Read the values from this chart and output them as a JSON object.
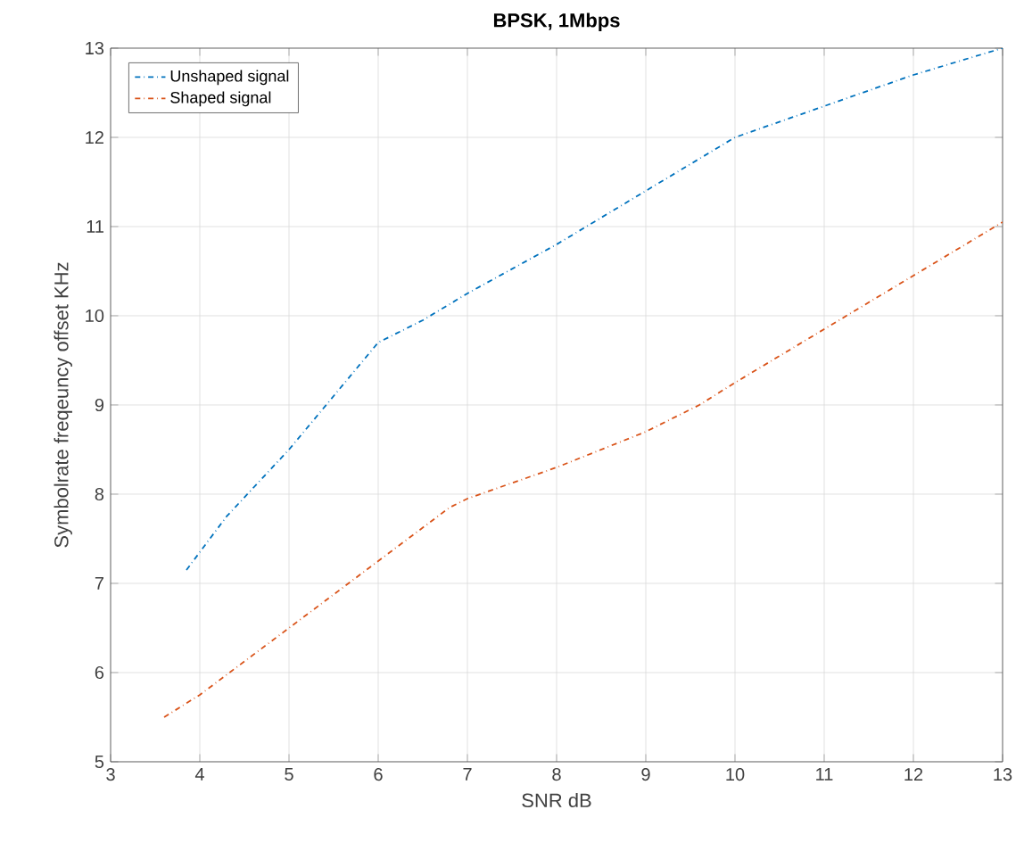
{
  "chart_data": {
    "type": "line",
    "title": "BPSK, 1Mbps",
    "xlabel": "SNR dB",
    "ylabel": "Symbolrate freqeuncy offset KHz",
    "xlim": [
      3,
      13
    ],
    "ylim": [
      5,
      13
    ],
    "xticks": [
      3,
      4,
      5,
      6,
      7,
      8,
      9,
      10,
      11,
      12,
      13
    ],
    "yticks": [
      5,
      6,
      7,
      8,
      9,
      10,
      11,
      12,
      13
    ],
    "grid": true,
    "legend": "top left",
    "line_style": "dashdot",
    "marker": "none",
    "series": [
      {
        "name": "Unshaped signal",
        "color": "#0072bd",
        "x": [
          3.85,
          4.3,
          5,
          5.5,
          6,
          6.5,
          7,
          8,
          9,
          10,
          11,
          12,
          13
        ],
        "values": [
          7.15,
          7.75,
          8.5,
          9.1,
          9.7,
          9.95,
          10.25,
          10.8,
          11.4,
          12.0,
          12.35,
          12.7,
          13.0
        ]
      },
      {
        "name": "Shaped signal",
        "color": "#d95319",
        "x": [
          3.6,
          4,
          5,
          6,
          6.8,
          7,
          8,
          9,
          9.6,
          10,
          11,
          12,
          13
        ],
        "values": [
          5.5,
          5.75,
          6.5,
          7.25,
          7.85,
          7.95,
          8.3,
          8.7,
          9.0,
          9.25,
          9.85,
          10.45,
          11.05
        ]
      }
    ]
  }
}
